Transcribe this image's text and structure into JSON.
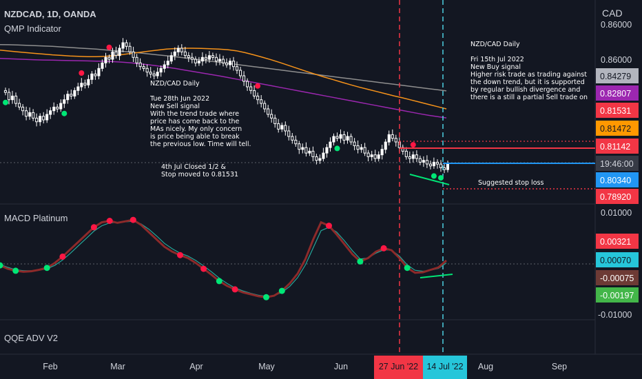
{
  "header": {
    "symbol": "NZDCAD, 1D, OANDA",
    "indicator": "QMP Indicator",
    "currency": "CAD",
    "top_price": "0.86000"
  },
  "panes": {
    "macd_title": "MACD Platinum",
    "qqe_title": "QQE ADV V2"
  },
  "annotations": {
    "sell_note": [
      "NZD/CAD Daily",
      "",
      "Tue 28th Jun 2022",
      "New Sell signal",
      "With the trend trade where",
      "price has come back to the",
      "MAs nicely. My only concern",
      "is price being able to break",
      "the previous low. Time will tell."
    ],
    "closed_note": [
      "4th Jul Closed 1/2 &",
      "Stop moved to 0.81531"
    ],
    "buy_note": [
      "NZD/CAD Daily",
      "",
      "Fri 15th Jul 2022",
      "New Buy signal",
      "Higher risk trade as trading against",
      "the down trend, but it is supported",
      "by regular bullish divergence and",
      "there is a still a partial Sell trade on"
    ],
    "stop_note": "Suggested stop loss"
  },
  "colors": {
    "background": "#131722",
    "candle": "#ffffff",
    "ma_orange": "#f7931a",
    "ma_purple": "#9c27b0",
    "ma_gray": "#8f8f8f",
    "signal_red": "#ff1744",
    "signal_green": "#00e676",
    "sell_line": "#f23645",
    "buy_line": "#4dd0e1",
    "macd_line": "#8d2a2a",
    "macd_signal": "#26a69a"
  },
  "chart_data": [
    {
      "type": "candlestick",
      "title": "NZDCAD, 1D, OANDA",
      "y_axis_ticks": [
        "0.86000"
      ],
      "price_labels": [
        {
          "value": "0.84279",
          "bg": "#b2b5be",
          "fg": "#131722"
        },
        {
          "value": "0.82807",
          "bg": "#9c27b0",
          "fg": "#ffffff"
        },
        {
          "value": "0.81531",
          "bg": "#f23645",
          "fg": "#ffffff"
        },
        {
          "value": "0.81472",
          "bg": "#ff9800",
          "fg": "#131722"
        },
        {
          "value": "0.81142",
          "bg": "#f23645",
          "fg": "#ffffff"
        },
        {
          "value": "19:46:00",
          "bg": "#363a45",
          "fg": "#d1d4dc"
        },
        {
          "value": "0.80340",
          "bg": "#2196f3",
          "fg": "#ffffff"
        },
        {
          "value": "0.78920",
          "bg": "#f23645",
          "fg": "#ffffff"
        }
      ],
      "levels": {
        "stop_sell": 0.81531,
        "entry_sell": 0.81142,
        "last": 0.8034,
        "stop_buy": 0.7892
      },
      "closes": [
        0.842,
        0.838,
        0.84,
        0.836,
        0.834,
        0.832,
        0.829,
        0.831,
        0.828,
        0.826,
        0.829,
        0.827,
        0.83,
        0.832,
        0.834,
        0.833,
        0.836,
        0.838,
        0.841,
        0.84,
        0.843,
        0.845,
        0.847,
        0.846,
        0.849,
        0.852,
        0.851,
        0.855,
        0.858,
        0.861,
        0.86,
        0.864,
        0.862,
        0.866,
        0.869,
        0.867,
        0.864,
        0.861,
        0.858,
        0.856,
        0.855,
        0.853,
        0.852,
        0.851,
        0.853,
        0.855,
        0.857,
        0.859,
        0.862,
        0.864,
        0.866,
        0.864,
        0.862,
        0.861,
        0.86,
        0.858,
        0.859,
        0.861,
        0.86,
        0.862,
        0.861,
        0.859,
        0.86,
        0.858,
        0.857,
        0.859,
        0.856,
        0.854,
        0.851,
        0.848,
        0.845,
        0.843,
        0.84,
        0.838,
        0.836,
        0.833,
        0.83,
        0.828,
        0.825,
        0.822,
        0.824,
        0.821,
        0.818,
        0.816,
        0.814,
        0.811,
        0.812,
        0.809,
        0.81,
        0.807,
        0.805,
        0.806,
        0.809,
        0.812,
        0.815,
        0.818,
        0.817,
        0.819,
        0.816,
        0.818,
        0.815,
        0.813,
        0.811,
        0.812,
        0.809,
        0.807,
        0.808,
        0.806,
        0.808,
        0.811,
        0.815,
        0.819,
        0.817,
        0.815,
        0.812,
        0.81,
        0.807,
        0.806,
        0.808,
        0.806,
        0.804,
        0.805,
        0.803,
        0.802,
        0.804,
        0.803,
        0.801,
        0.8,
        0.803
      ],
      "ma_gray": [
        0.868,
        0.8679,
        0.8678,
        0.8676,
        0.8674,
        0.8672,
        0.867,
        0.8667,
        0.8664,
        0.8661,
        0.8658,
        0.8655,
        0.8651,
        0.8647,
        0.8643,
        0.8639,
        0.8634,
        0.8629,
        0.8624,
        0.8619,
        0.8614,
        0.8608,
        0.8602,
        0.8596,
        0.859,
        0.8584,
        0.8578,
        0.8572,
        0.8566,
        0.856,
        0.8554,
        0.8548,
        0.8542,
        0.8536,
        0.853,
        0.8524,
        0.8518,
        0.8512,
        0.8506,
        0.85,
        0.8494,
        0.8488,
        0.8482,
        0.8476,
        0.847,
        0.8464,
        0.8458,
        0.8452,
        0.8446,
        0.844,
        0.8434,
        0.8428
      ],
      "ma_purple": [
        0.8605,
        0.8603,
        0.8601,
        0.8599,
        0.8597,
        0.8596,
        0.8595,
        0.8594,
        0.8593,
        0.8592,
        0.8591,
        0.859,
        0.8589,
        0.8587,
        0.8584,
        0.858,
        0.8575,
        0.857,
        0.8564,
        0.8557,
        0.855,
        0.8542,
        0.8534,
        0.8526,
        0.8518,
        0.851,
        0.8501,
        0.8492,
        0.8483,
        0.8474,
        0.8465,
        0.8456,
        0.8447,
        0.8438,
        0.8429,
        0.842,
        0.8411,
        0.8402,
        0.8393,
        0.8384,
        0.8375,
        0.8366,
        0.8357,
        0.8348,
        0.8339,
        0.833,
        0.8321,
        0.8312,
        0.8303,
        0.8295,
        0.8288,
        0.8281
      ],
      "ma_orange": [
        0.865,
        0.8645,
        0.864,
        0.8636,
        0.8632,
        0.8628,
        0.8624,
        0.8621,
        0.8618,
        0.8616,
        0.8614,
        0.8614,
        0.8616,
        0.862,
        0.8626,
        0.8632,
        0.8638,
        0.8644,
        0.865,
        0.8655,
        0.8658,
        0.866,
        0.866,
        0.8659,
        0.8657,
        0.8655,
        0.8652,
        0.8646,
        0.8636,
        0.8624,
        0.8611,
        0.8597,
        0.8582,
        0.8566,
        0.855,
        0.8534,
        0.8519,
        0.8504,
        0.849,
        0.8476,
        0.8462,
        0.8449,
        0.8437,
        0.8425,
        0.8413,
        0.8401,
        0.839,
        0.8378,
        0.8366,
        0.8354,
        0.8342,
        0.833
      ],
      "sell_signals_index": [
        22,
        30,
        73,
        118
      ],
      "buy_signals_index": [
        0,
        17,
        96,
        124,
        126
      ]
    },
    {
      "type": "line",
      "title": "MACD Platinum",
      "y_axis_ticks": [
        "0.01000",
        "-0.01000"
      ],
      "value_labels": [
        {
          "value": "0.00321",
          "bg": "#f23645",
          "fg": "#ffffff"
        },
        {
          "value": "0.00070",
          "bg": "#26c6da",
          "fg": "#131722"
        },
        {
          "value": "-0.00075",
          "bg": "#6d3a35",
          "fg": "#ffffff"
        },
        {
          "value": "-0.00197",
          "bg": "#43b649",
          "fg": "#ffffff"
        }
      ],
      "macd": [
        -0.0003,
        -0.001,
        -0.0014,
        -0.0016,
        -0.0015,
        -0.0012,
        -0.0008,
        0.0002,
        0.0015,
        0.003,
        0.0045,
        0.006,
        0.0075,
        0.0085,
        0.0088,
        0.0084,
        0.0087,
        0.009,
        0.008,
        0.0065,
        0.005,
        0.0035,
        0.0025,
        0.0018,
        0.0012,
        0.0002,
        -0.001,
        -0.0022,
        -0.0035,
        -0.0045,
        -0.0052,
        -0.0058,
        -0.0062,
        -0.0066,
        -0.0068,
        -0.0065,
        -0.0055,
        -0.004,
        -0.002,
        0.001,
        0.005,
        0.0085,
        0.0078,
        0.006,
        0.004,
        0.002,
        0.0005,
        0.0012,
        0.0025,
        0.0032,
        0.0028,
        0.0012,
        -0.0008,
        -0.0018,
        -0.0017,
        -0.0012,
        -0.0007,
        0.0007
      ],
      "signal": [
        -0.0001,
        -0.0007,
        -0.0012,
        -0.0014,
        -0.0014,
        -0.0013,
        -0.001,
        -0.0003,
        0.0008,
        0.0022,
        0.0037,
        0.0052,
        0.0067,
        0.0078,
        0.0084,
        0.0085,
        0.0086,
        0.0087,
        0.0082,
        0.0071,
        0.0057,
        0.0042,
        0.0031,
        0.0022,
        0.0016,
        0.0007,
        -0.0004,
        -0.0016,
        -0.0029,
        -0.004,
        -0.0049,
        -0.0055,
        -0.006,
        -0.0064,
        -0.0066,
        -0.0065,
        -0.0058,
        -0.0046,
        -0.0028,
        -0.0002,
        0.0033,
        0.0068,
        0.0075,
        0.0065,
        0.0047,
        0.0027,
        0.001,
        0.0012,
        0.0022,
        0.0029,
        0.0028,
        0.0016,
        -0.0002,
        -0.0013,
        -0.0015,
        -0.0013,
        -0.0009,
        0.0002
      ],
      "red_dots_index": [
        8,
        12,
        14,
        17,
        23,
        26,
        30,
        42,
        49
      ],
      "green_dots_index": [
        0,
        2,
        6,
        28,
        34,
        36,
        46,
        52
      ]
    }
  ],
  "x_axis": {
    "ticks": [
      {
        "label": "Feb",
        "pos": 0.084
      },
      {
        "label": "Mar",
        "pos": 0.198
      },
      {
        "label": "Apr",
        "pos": 0.33
      },
      {
        "label": "May",
        "pos": 0.448
      },
      {
        "label": "Jun",
        "pos": 0.573
      },
      {
        "label": "Aug",
        "pos": 0.816
      },
      {
        "label": "Sep",
        "pos": 0.94
      }
    ],
    "markers": [
      {
        "label": "27 Jun '22",
        "bg": "#f23645"
      },
      {
        "label": "14 Jul '22",
        "bg": "#26c6da"
      }
    ]
  }
}
